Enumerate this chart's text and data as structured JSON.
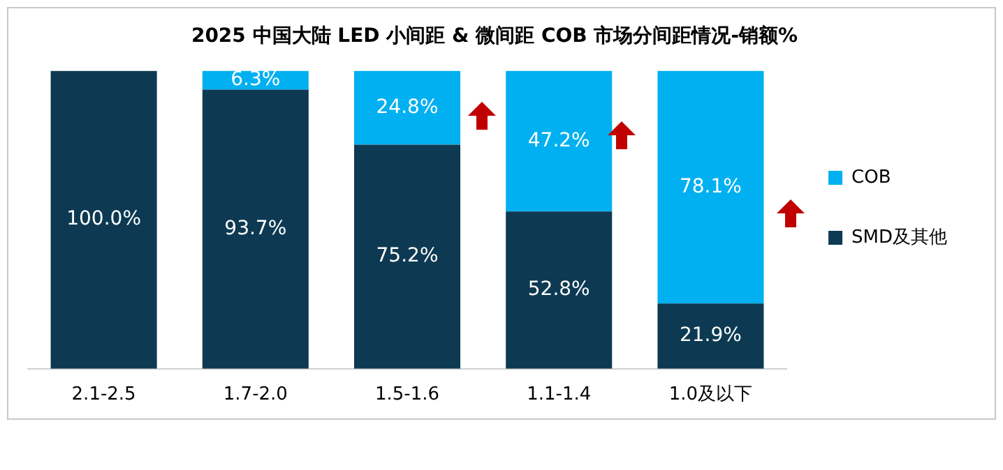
{
  "chart_data": {
    "type": "bar",
    "title": "2025 中国大陆 LED 小间距 & 微间距 COB 市场分间距情况-销额%",
    "categories": [
      "2.1-2.5",
      "1.7-2.0",
      "1.5-1.6",
      "1.1-1.4",
      "1.0及以下"
    ],
    "stacked": true,
    "legend": "right",
    "series": [
      {
        "name": "SMD及其他",
        "color": "#0d3a52",
        "values": [
          100.0,
          93.7,
          75.2,
          52.8,
          21.9
        ],
        "value_labels": [
          "100.0%",
          "93.7%",
          "75.2%",
          "52.8%",
          "21.9%"
        ]
      },
      {
        "name": "COB",
        "color": "#00b0f0",
        "values": [
          0,
          6.3,
          24.8,
          47.2,
          78.1
        ],
        "value_labels": [
          null,
          "6.3%",
          "24.8%",
          "47.2%",
          "78.1%"
        ]
      }
    ]
  }
}
